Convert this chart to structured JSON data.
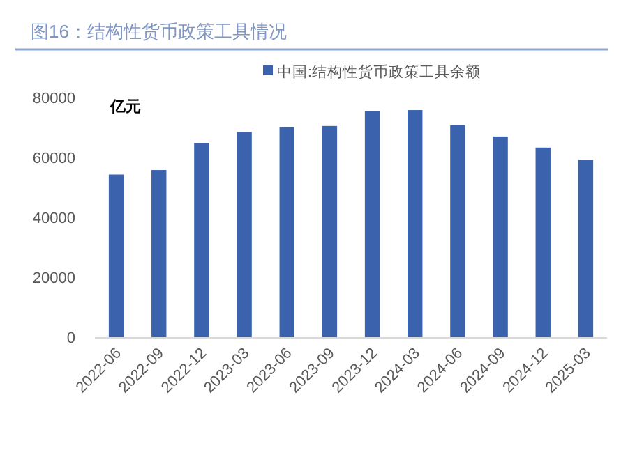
{
  "chart_data": {
    "type": "bar",
    "title": "图16：结构性货币政策工具情况",
    "ylabel": "亿元",
    "categories": [
      "2022-06",
      "2022-09",
      "2022-12",
      "2023-03",
      "2023-06",
      "2023-09",
      "2023-12",
      "2024-03",
      "2024-06",
      "2024-09",
      "2024-12",
      "2025-03"
    ],
    "series": [
      {
        "name": "中国:结构性货币政策工具余额",
        "color": "#3a62ad",
        "values": [
          54300,
          55800,
          64800,
          68500,
          70100,
          70500,
          75500,
          75800,
          70700,
          67000,
          63300,
          59200
        ]
      }
    ],
    "ylim": [
      0,
      80000
    ],
    "yticks": [
      0,
      20000,
      40000,
      60000,
      80000
    ],
    "grid": false,
    "legend": "top"
  }
}
